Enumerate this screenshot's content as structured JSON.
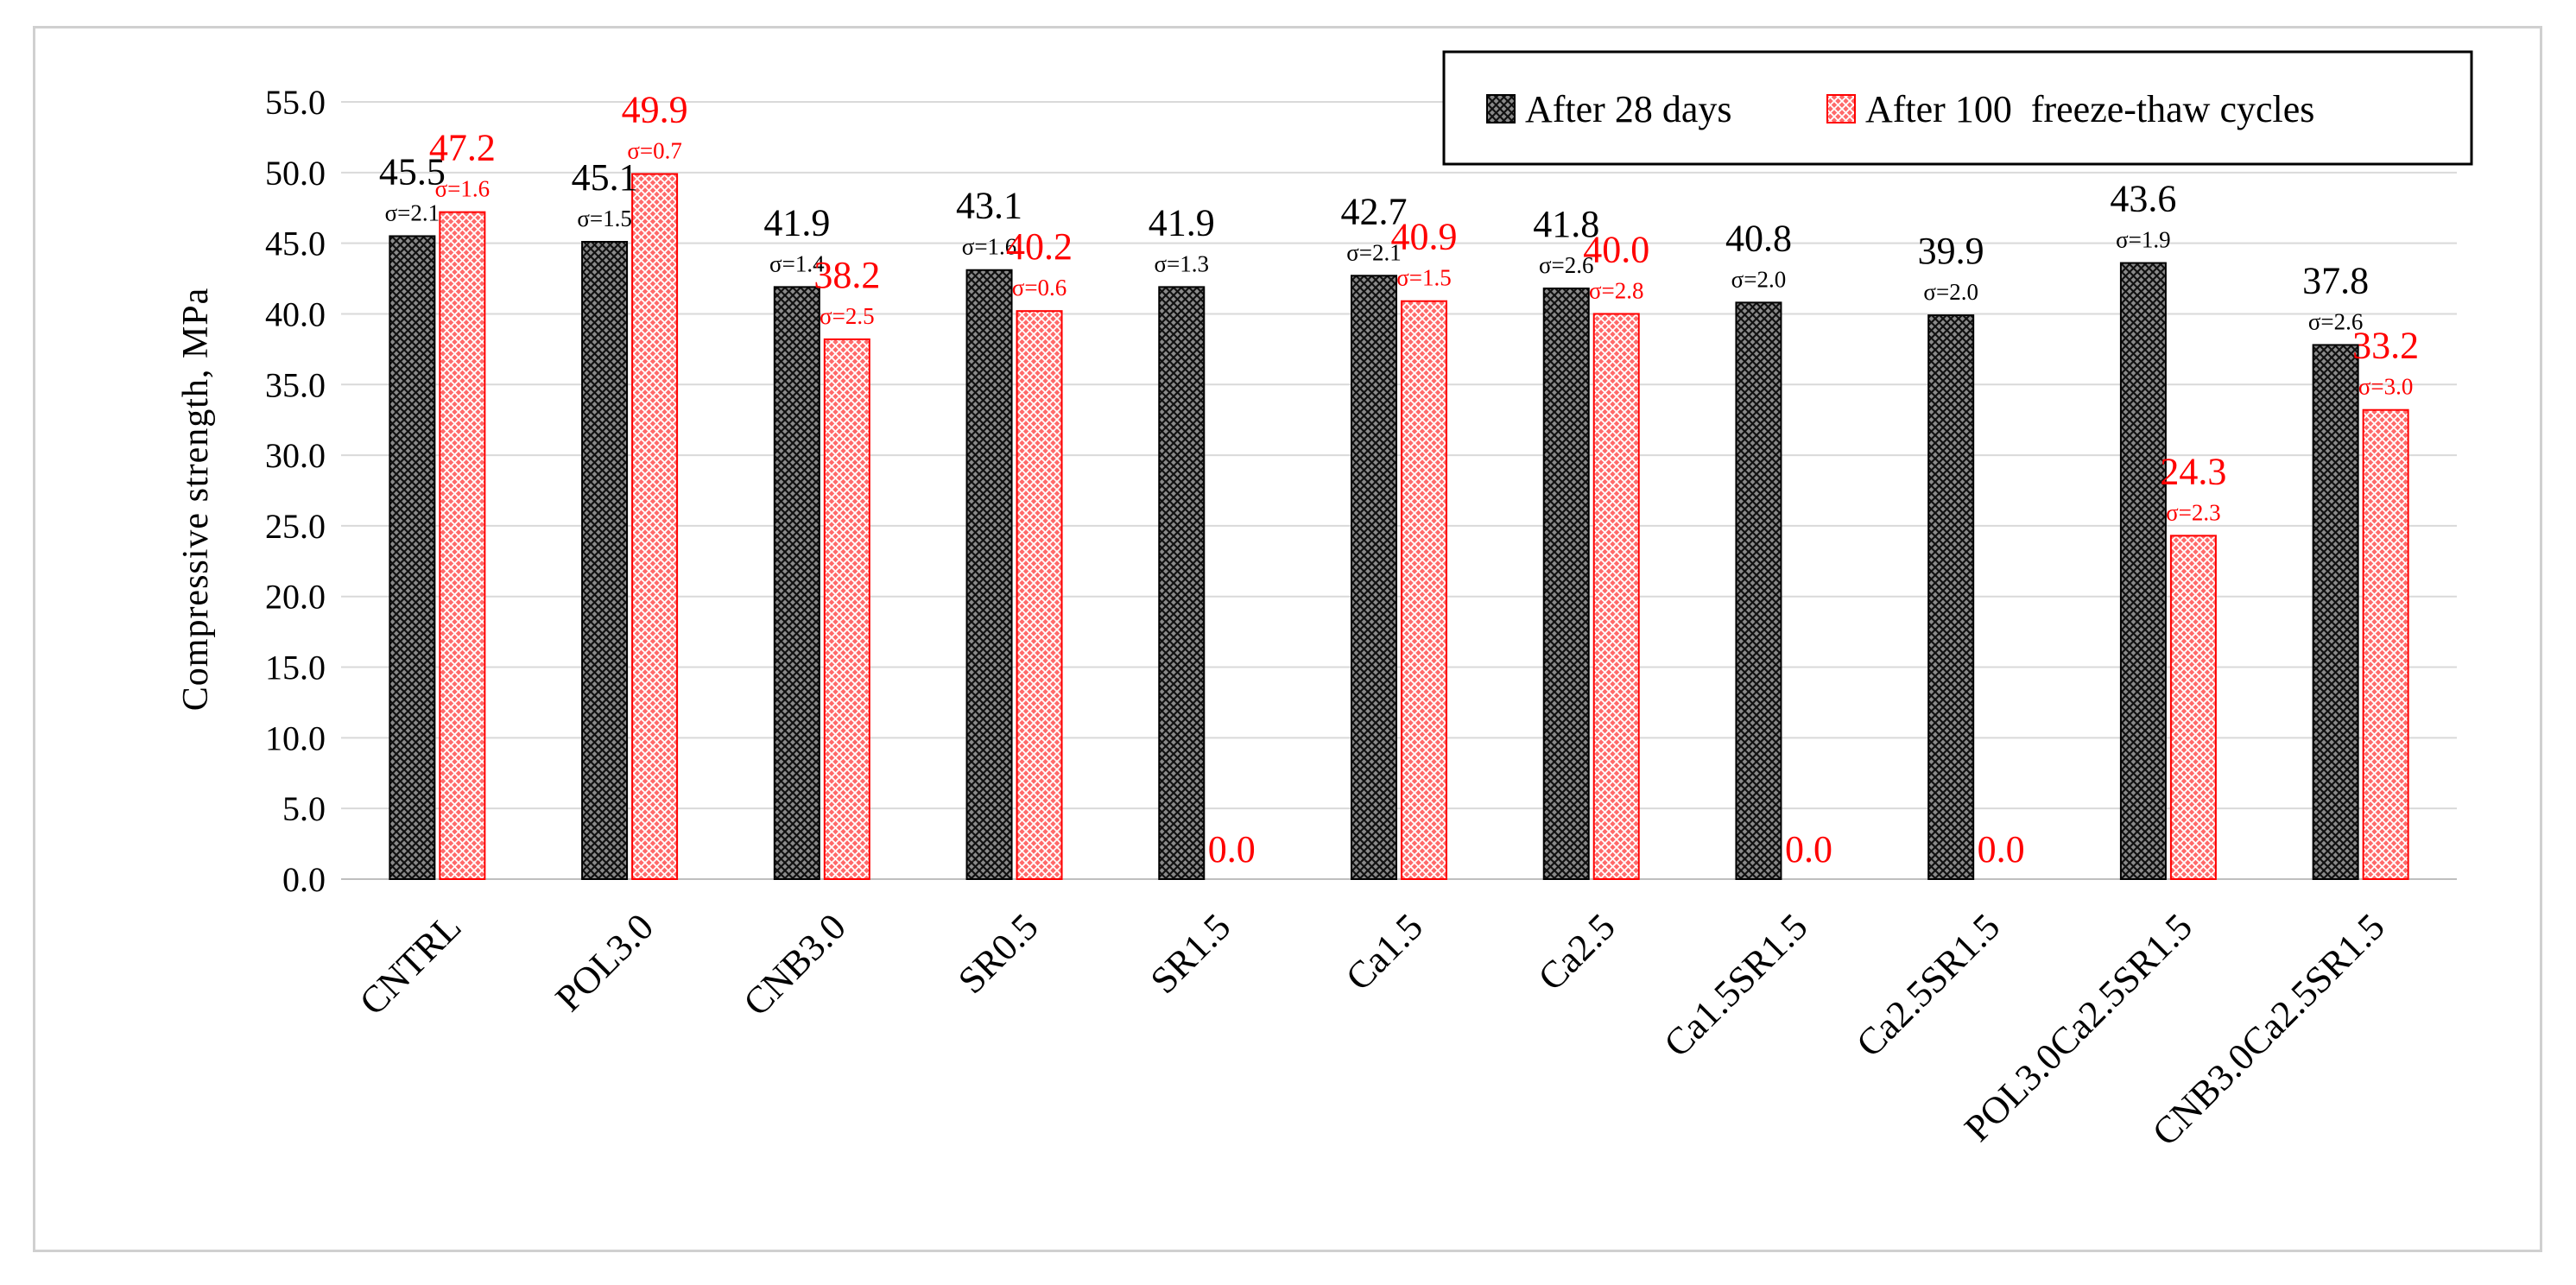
{
  "chart_data": {
    "type": "bar",
    "title": "",
    "xlabel": "",
    "ylabel": "Compressive strength, MPa",
    "ylim": [
      0,
      55
    ],
    "ytick_step": 5,
    "ytick_labels": [
      "0.0",
      "5.0",
      "10.0",
      "15.0",
      "20.0",
      "25.0",
      "30.0",
      "35.0",
      "40.0",
      "45.0",
      "50.0",
      "55.0"
    ],
    "grid": true,
    "legend_position": "top-right",
    "categories": [
      "CNTRL",
      "POL3.0",
      "CNB3.0",
      "SR0.5",
      "SR1.5",
      "Ca1.5",
      "Ca2.5",
      "Ca1.5SR1.5",
      "Ca2.5SR1.5",
      "POL3.0Ca2.5SR1.5",
      "CNB3.0Ca2.5SR1.5"
    ],
    "series": [
      {
        "name": "After 28 days",
        "color": "#1a1a1a",
        "label_color": "#000000",
        "pattern": "crosshatch-dark",
        "values": [
          45.5,
          45.1,
          41.9,
          43.1,
          41.9,
          42.7,
          41.8,
          40.8,
          39.9,
          43.6,
          37.8
        ],
        "value_labels": [
          "45.5",
          "45.1",
          "41.9",
          "43.1",
          "41.9",
          "42.7",
          "41.8",
          "40.8",
          "39.9",
          "43.6",
          "37.8"
        ],
        "sd_labels": [
          "σ=2.1",
          "σ=1.5",
          "σ=1.4",
          "σ=1.6",
          "σ=1.3",
          "σ=2.1",
          "σ=2.6",
          "σ=2.0",
          "σ=2.0",
          "σ=1.9",
          "σ=2.6"
        ]
      },
      {
        "name": "After 100  freeze-thaw cycles",
        "color": "#ff0000",
        "label_color": "#ff0000",
        "pattern": "crosshatch-red",
        "values": [
          47.2,
          49.9,
          38.2,
          40.2,
          0.0,
          40.9,
          40.0,
          0.0,
          0.0,
          24.3,
          33.2
        ],
        "value_labels": [
          "47.2",
          "49.9",
          "38.2",
          "40.2",
          "0.0",
          "40.9",
          "40.0",
          "0.0",
          "0.0",
          "24.3",
          "33.2"
        ],
        "sd_labels": [
          "σ=1.6",
          "σ=0.7",
          "σ=2.5",
          "σ=0.6",
          "",
          "σ=1.5",
          "σ=2.8",
          "",
          "",
          "σ=2.3",
          "σ=3.0"
        ]
      }
    ]
  }
}
